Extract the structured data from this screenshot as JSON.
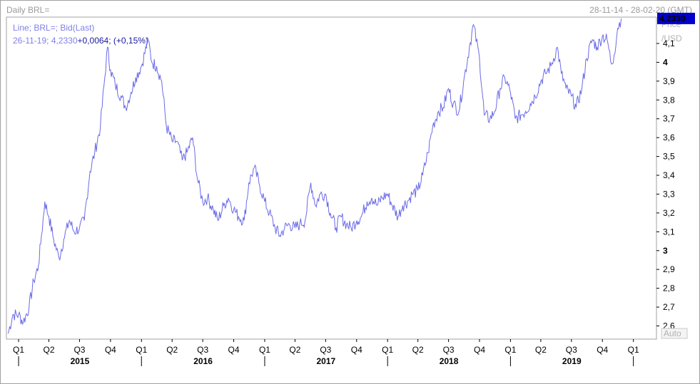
{
  "header": {
    "title": "Daily BRL=",
    "date_range": "28-11-14 - 28-02-20 (GMT)"
  },
  "legend": {
    "line1": "Line; BRL=; Bid(Last)",
    "line2_date": "26-11-19; 4,2330",
    "line2_change": "+0,0064; (+0,15%)"
  },
  "axis": {
    "price_label": "Price",
    "unit_label": "/USD",
    "auto_label": "Auto",
    "last_price": "4,2330",
    "last_price_color": "#0000cc"
  },
  "chart_data": {
    "type": "line",
    "series": [
      {
        "color": "#6a6ae8",
        "points": [
          [
            "2014-12-01",
            2.56
          ],
          [
            "2014-12-15",
            2.66
          ],
          [
            "2015-01-01",
            2.66
          ],
          [
            "2015-01-15",
            2.62
          ],
          [
            "2015-02-01",
            2.7
          ],
          [
            "2015-02-15",
            2.84
          ],
          [
            "2015-03-01",
            2.92
          ],
          [
            "2015-03-10",
            3.08
          ],
          [
            "2015-03-20",
            3.26
          ],
          [
            "2015-04-01",
            3.18
          ],
          [
            "2015-04-15",
            3.06
          ],
          [
            "2015-05-01",
            2.96
          ],
          [
            "2015-05-15",
            3.06
          ],
          [
            "2015-06-01",
            3.16
          ],
          [
            "2015-06-15",
            3.1
          ],
          [
            "2015-07-01",
            3.12
          ],
          [
            "2015-07-15",
            3.16
          ],
          [
            "2015-08-01",
            3.42
          ],
          [
            "2015-08-15",
            3.52
          ],
          [
            "2015-09-01",
            3.66
          ],
          [
            "2015-09-22",
            4.08
          ],
          [
            "2015-10-01",
            3.96
          ],
          [
            "2015-10-15",
            3.88
          ],
          [
            "2015-11-01",
            3.82
          ],
          [
            "2015-11-15",
            3.76
          ],
          [
            "2015-12-01",
            3.84
          ],
          [
            "2015-12-15",
            3.92
          ],
          [
            "2016-01-01",
            3.98
          ],
          [
            "2016-01-21",
            4.12
          ],
          [
            "2016-02-01",
            4.0
          ],
          [
            "2016-02-15",
            3.98
          ],
          [
            "2016-03-01",
            3.9
          ],
          [
            "2016-03-15",
            3.66
          ],
          [
            "2016-04-01",
            3.58
          ],
          [
            "2016-04-15",
            3.58
          ],
          [
            "2016-05-01",
            3.48
          ],
          [
            "2016-05-15",
            3.52
          ],
          [
            "2016-06-01",
            3.6
          ],
          [
            "2016-06-15",
            3.38
          ],
          [
            "2016-07-01",
            3.26
          ],
          [
            "2016-07-15",
            3.28
          ],
          [
            "2016-08-01",
            3.22
          ],
          [
            "2016-08-15",
            3.16
          ],
          [
            "2016-09-01",
            3.24
          ],
          [
            "2016-09-15",
            3.28
          ],
          [
            "2016-10-01",
            3.22
          ],
          [
            "2016-10-15",
            3.18
          ],
          [
            "2016-11-01",
            3.16
          ],
          [
            "2016-11-15",
            3.36
          ],
          [
            "2016-12-01",
            3.44
          ],
          [
            "2016-12-15",
            3.36
          ],
          [
            "2017-01-01",
            3.26
          ],
          [
            "2017-01-15",
            3.2
          ],
          [
            "2017-02-01",
            3.12
          ],
          [
            "2017-02-15",
            3.08
          ],
          [
            "2017-03-01",
            3.12
          ],
          [
            "2017-03-15",
            3.14
          ],
          [
            "2017-04-01",
            3.12
          ],
          [
            "2017-04-15",
            3.14
          ],
          [
            "2017-05-01",
            3.16
          ],
          [
            "2017-05-18",
            3.36
          ],
          [
            "2017-06-01",
            3.24
          ],
          [
            "2017-06-15",
            3.3
          ],
          [
            "2017-07-01",
            3.3
          ],
          [
            "2017-07-15",
            3.2
          ],
          [
            "2017-08-01",
            3.12
          ],
          [
            "2017-08-15",
            3.18
          ],
          [
            "2017-09-01",
            3.14
          ],
          [
            "2017-09-15",
            3.12
          ],
          [
            "2017-10-01",
            3.16
          ],
          [
            "2017-10-15",
            3.18
          ],
          [
            "2017-11-01",
            3.26
          ],
          [
            "2017-11-15",
            3.28
          ],
          [
            "2017-12-01",
            3.24
          ],
          [
            "2017-12-15",
            3.28
          ],
          [
            "2018-01-01",
            3.3
          ],
          [
            "2018-01-15",
            3.24
          ],
          [
            "2018-02-01",
            3.18
          ],
          [
            "2018-02-15",
            3.24
          ],
          [
            "2018-03-01",
            3.26
          ],
          [
            "2018-03-15",
            3.3
          ],
          [
            "2018-04-01",
            3.32
          ],
          [
            "2018-04-15",
            3.4
          ],
          [
            "2018-05-01",
            3.52
          ],
          [
            "2018-05-15",
            3.66
          ],
          [
            "2018-06-01",
            3.74
          ],
          [
            "2018-06-15",
            3.76
          ],
          [
            "2018-07-01",
            3.86
          ],
          [
            "2018-07-15",
            3.78
          ],
          [
            "2018-08-01",
            3.74
          ],
          [
            "2018-08-15",
            3.9
          ],
          [
            "2018-09-01",
            4.08
          ],
          [
            "2018-09-13",
            4.2
          ],
          [
            "2018-10-01",
            4.02
          ],
          [
            "2018-10-15",
            3.72
          ],
          [
            "2018-11-01",
            3.7
          ],
          [
            "2018-11-15",
            3.74
          ],
          [
            "2018-12-01",
            3.86
          ],
          [
            "2018-12-15",
            3.92
          ],
          [
            "2019-01-01",
            3.84
          ],
          [
            "2019-01-15",
            3.7
          ],
          [
            "2019-02-01",
            3.72
          ],
          [
            "2019-02-15",
            3.74
          ],
          [
            "2019-03-01",
            3.78
          ],
          [
            "2019-03-15",
            3.82
          ],
          [
            "2019-04-01",
            3.9
          ],
          [
            "2019-04-15",
            3.94
          ],
          [
            "2019-05-01",
            3.98
          ],
          [
            "2019-05-20",
            4.08
          ],
          [
            "2019-06-01",
            3.94
          ],
          [
            "2019-06-15",
            3.86
          ],
          [
            "2019-07-01",
            3.82
          ],
          [
            "2019-07-15",
            3.76
          ],
          [
            "2019-08-01",
            3.86
          ],
          [
            "2019-08-15",
            4.02
          ],
          [
            "2019-09-01",
            4.12
          ],
          [
            "2019-09-15",
            4.08
          ],
          [
            "2019-10-01",
            4.14
          ],
          [
            "2019-10-15",
            4.12
          ],
          [
            "2019-10-28",
            3.99
          ],
          [
            "2019-11-05",
            4.04
          ],
          [
            "2019-11-15",
            4.18
          ],
          [
            "2019-11-26",
            4.233
          ]
        ]
      }
    ],
    "x_range": [
      "2014-11-28",
      "2020-02-28"
    ],
    "ylim": [
      2.53,
      4.24
    ],
    "y_ticks": [
      {
        "value": 4.1,
        "label": "4,1",
        "bold": false
      },
      {
        "value": 4.0,
        "label": "4",
        "bold": true
      },
      {
        "value": 3.9,
        "label": "3,9",
        "bold": false
      },
      {
        "value": 3.8,
        "label": "3,8",
        "bold": false
      },
      {
        "value": 3.7,
        "label": "3,7",
        "bold": false
      },
      {
        "value": 3.6,
        "label": "3,6",
        "bold": false
      },
      {
        "value": 3.5,
        "label": "3,5",
        "bold": false
      },
      {
        "value": 3.4,
        "label": "3,4",
        "bold": false
      },
      {
        "value": 3.3,
        "label": "3,3",
        "bold": false
      },
      {
        "value": 3.2,
        "label": "3,2",
        "bold": false
      },
      {
        "value": 3.1,
        "label": "3,1",
        "bold": false
      },
      {
        "value": 3.0,
        "label": "3",
        "bold": true
      },
      {
        "value": 2.9,
        "label": "2,9",
        "bold": false
      },
      {
        "value": 2.8,
        "label": "2,8",
        "bold": false
      },
      {
        "value": 2.7,
        "label": "2,7",
        "bold": false
      },
      {
        "value": 2.6,
        "label": "2,6",
        "bold": false
      }
    ],
    "quarter_ticks": [
      {
        "date": "2015-01-01",
        "label": "Q1"
      },
      {
        "date": "2015-04-01",
        "label": "Q2"
      },
      {
        "date": "2015-07-01",
        "label": "Q3"
      },
      {
        "date": "2015-10-01",
        "label": "Q4"
      },
      {
        "date": "2016-01-01",
        "label": "Q1"
      },
      {
        "date": "2016-04-01",
        "label": "Q2"
      },
      {
        "date": "2016-07-01",
        "label": "Q3"
      },
      {
        "date": "2016-10-01",
        "label": "Q4"
      },
      {
        "date": "2017-01-01",
        "label": "Q1"
      },
      {
        "date": "2017-04-01",
        "label": "Q2"
      },
      {
        "date": "2017-07-01",
        "label": "Q3"
      },
      {
        "date": "2017-10-01",
        "label": "Q4"
      },
      {
        "date": "2018-01-01",
        "label": "Q1"
      },
      {
        "date": "2018-04-01",
        "label": "Q2"
      },
      {
        "date": "2018-07-01",
        "label": "Q3"
      },
      {
        "date": "2018-10-01",
        "label": "Q4"
      },
      {
        "date": "2019-01-01",
        "label": "Q1"
      },
      {
        "date": "2019-04-01",
        "label": "Q2"
      },
      {
        "date": "2019-07-01",
        "label": "Q3"
      },
      {
        "date": "2019-10-01",
        "label": "Q4"
      },
      {
        "date": "2020-01-01",
        "label": "Q1"
      }
    ],
    "year_ticks": [
      {
        "date": "2015-01-01"
      },
      {
        "date": "2016-01-01"
      },
      {
        "date": "2017-01-01"
      },
      {
        "date": "2018-01-01"
      },
      {
        "date": "2019-01-01"
      },
      {
        "date": "2020-01-01"
      }
    ],
    "year_labels": [
      {
        "date": "2015-07-02",
        "label": "2015"
      },
      {
        "date": "2016-07-02",
        "label": "2016"
      },
      {
        "date": "2017-07-02",
        "label": "2017"
      },
      {
        "date": "2018-07-02",
        "label": "2018"
      },
      {
        "date": "2019-07-02",
        "label": "2019"
      }
    ],
    "grid": false
  }
}
